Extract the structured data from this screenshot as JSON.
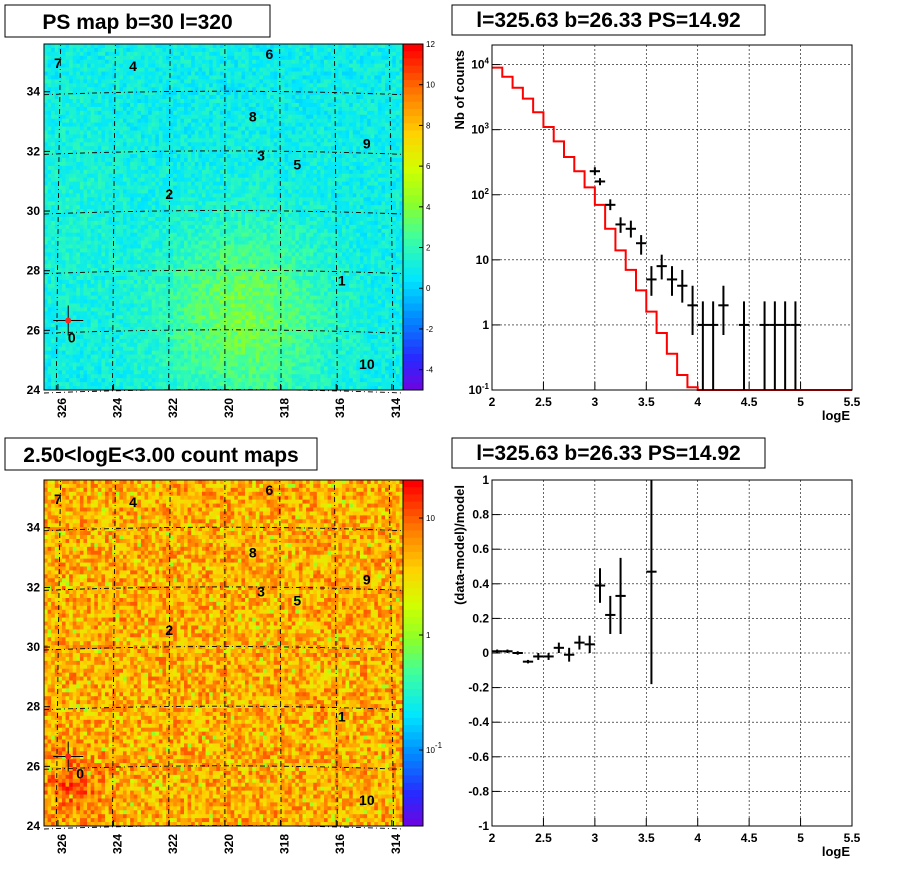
{
  "chart_data": [
    {
      "type": "heatmap",
      "title": "PS map b=30 l=320",
      "x_ticks": [
        "326",
        "324",
        "322",
        "320",
        "318",
        "316",
        "314"
      ],
      "y_ticks": [
        "24",
        "26",
        "28",
        "30",
        "32",
        "34"
      ],
      "xlim": [
        326.5,
        313.6
      ],
      "ylim": [
        24.0,
        35.6
      ],
      "colorbar_ticks": [
        "12",
        "10",
        "8",
        "6",
        "4",
        "2",
        "0",
        "-2",
        "-4"
      ],
      "zlim": [
        -5,
        12
      ],
      "sources": [
        {
          "label": "0",
          "l": 325.5,
          "b": 25.6
        },
        {
          "label": "1",
          "l": 315.8,
          "b": 27.5
        },
        {
          "label": "2",
          "l": 322.0,
          "b": 30.4
        },
        {
          "label": "3",
          "l": 318.7,
          "b": 31.7
        },
        {
          "label": "4",
          "l": 323.3,
          "b": 34.7
        },
        {
          "label": "5",
          "l": 317.4,
          "b": 31.4
        },
        {
          "label": "6",
          "l": 318.4,
          "b": 35.1
        },
        {
          "label": "7",
          "l": 326.0,
          "b": 34.8
        },
        {
          "label": "8",
          "l": 319.0,
          "b": 33.0
        },
        {
          "label": "9",
          "l": 314.9,
          "b": 32.1
        },
        {
          "label": "10",
          "l": 314.9,
          "b": 24.7
        }
      ],
      "marker": {
        "l": 325.63,
        "b": 26.33
      }
    },
    {
      "type": "line",
      "title": "l=325.63 b=26.33 PS=14.92",
      "xlabel": "logE",
      "ylabel": "Nb of counts",
      "xlim": [
        2.0,
        5.5
      ],
      "ylim": [
        0.1,
        20000
      ],
      "yscale": "log",
      "grid": true,
      "x_ticks": [
        "2",
        "2.5",
        "3",
        "3.5",
        "4",
        "4.5",
        "5",
        "5.5"
      ],
      "y_ticks": [
        "10^-1",
        "1",
        "10",
        "10^2",
        "10^3",
        "10^4"
      ],
      "series": [
        {
          "color": "#ff0000",
          "style": "step",
          "bin_edges": [
            2.0,
            2.1,
            2.2,
            2.3,
            2.4,
            2.5,
            2.6,
            2.7,
            2.8,
            2.9,
            3.0,
            3.1,
            3.2,
            3.3,
            3.4,
            3.5,
            3.6,
            3.7,
            3.8,
            3.9,
            4.0,
            4.1,
            5.5
          ],
          "values": [
            9000,
            6500,
            4400,
            3000,
            1850,
            1100,
            660,
            380,
            230,
            130,
            70,
            30,
            14,
            7,
            3.4,
            1.6,
            0.75,
            0.36,
            0.17,
            0.11,
            0.1,
            0.1
          ]
        },
        {
          "color": "#000000",
          "style": "errorbar",
          "x": [
            3.0,
            3.05,
            3.15,
            3.25,
            3.35,
            3.45,
            3.55,
            3.65,
            3.75,
            3.85,
            3.95,
            4.05,
            4.15,
            4.25,
            4.45,
            4.65,
            4.75,
            4.85,
            4.95
          ],
          "y": [
            230,
            160,
            70,
            35,
            30,
            18,
            5,
            8,
            5,
            4,
            2,
            1,
            1,
            2,
            1,
            1,
            1,
            1,
            1
          ],
          "ylo": [
            200,
            140,
            58,
            26,
            22,
            12,
            2.8,
            5,
            2.8,
            2.2,
            0.7,
            0.1,
            0.1,
            0.7,
            0.1,
            0.1,
            0.1,
            0.1,
            0.1
          ],
          "yhi": [
            265,
            180,
            85,
            45,
            40,
            24,
            8,
            12,
            8,
            7,
            4,
            2.3,
            2.3,
            4,
            2.3,
            2.3,
            2.3,
            2.3,
            2.3
          ]
        }
      ]
    },
    {
      "type": "heatmap",
      "title": "2.50<logE<3.00 count maps",
      "x_ticks": [
        "326",
        "324",
        "322",
        "320",
        "318",
        "316",
        "314"
      ],
      "y_ticks": [
        "24",
        "26",
        "28",
        "30",
        "32",
        "34"
      ],
      "xlim": [
        326.5,
        313.6
      ],
      "ylim": [
        24.0,
        35.6
      ],
      "colorbar_ticks": [
        "10",
        "1",
        "10^-1"
      ],
      "zscale": "log",
      "sources": [
        {
          "label": "0",
          "l": 325.2,
          "b": 25.6
        },
        {
          "label": "1",
          "l": 315.8,
          "b": 27.5
        },
        {
          "label": "2",
          "l": 322.0,
          "b": 30.4
        },
        {
          "label": "3",
          "l": 318.7,
          "b": 31.7
        },
        {
          "label": "4",
          "l": 323.3,
          "b": 34.7
        },
        {
          "label": "5",
          "l": 317.4,
          "b": 31.4
        },
        {
          "label": "6",
          "l": 318.4,
          "b": 35.1
        },
        {
          "label": "7",
          "l": 326.0,
          "b": 34.8
        },
        {
          "label": "8",
          "l": 319.0,
          "b": 33.0
        },
        {
          "label": "9",
          "l": 314.9,
          "b": 32.1
        },
        {
          "label": "10",
          "l": 314.9,
          "b": 24.7
        }
      ],
      "marker": {
        "l": 325.63,
        "b": 26.33
      }
    },
    {
      "type": "scatter",
      "title": "l=325.63 b=26.33 PS=14.92",
      "xlabel": "logE",
      "ylabel": "(data-model)/model",
      "xlim": [
        2.0,
        5.5
      ],
      "ylim": [
        -1,
        1
      ],
      "grid": true,
      "x_ticks": [
        "2",
        "2.5",
        "3",
        "3.5",
        "4",
        "4.5",
        "5",
        "5.5"
      ],
      "y_ticks": [
        "-1",
        "-0.8",
        "-0.6",
        "-0.4",
        "-0.2",
        "0",
        "0.2",
        "0.4",
        "0.6",
        "0.8",
        "1"
      ],
      "series": [
        {
          "color": "#000000",
          "style": "errorbar",
          "x": [
            2.05,
            2.15,
            2.25,
            2.35,
            2.45,
            2.55,
            2.65,
            2.75,
            2.85,
            2.95,
            3.05,
            3.15,
            3.25,
            3.55
          ],
          "y": [
            0.01,
            0.01,
            0.0,
            -0.05,
            -0.02,
            -0.02,
            0.03,
            -0.01,
            0.06,
            0.05,
            0.39,
            0.22,
            0.33,
            0.47
          ],
          "ylo": [
            0.0,
            0.0,
            -0.01,
            -0.06,
            -0.04,
            -0.04,
            0.0,
            -0.05,
            0.02,
            0.0,
            0.29,
            0.11,
            0.11,
            -0.18
          ],
          "yhi": [
            0.02,
            0.02,
            0.01,
            -0.04,
            0.0,
            0.0,
            0.06,
            0.03,
            0.1,
            0.1,
            0.49,
            0.33,
            0.55,
            1.0
          ]
        }
      ]
    }
  ]
}
